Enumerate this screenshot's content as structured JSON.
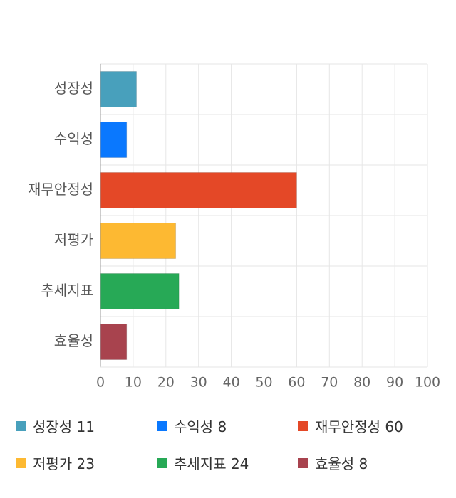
{
  "chart_data": {
    "type": "bar",
    "orientation": "horizontal",
    "categories": [
      "성장성",
      "수익성",
      "재무안정성",
      "저평가",
      "추세지표",
      "효율성"
    ],
    "values": [
      11,
      8,
      60,
      23,
      24,
      8
    ],
    "colors": [
      "#48a0bc",
      "#0a78fe",
      "#e44827",
      "#fdb932",
      "#27a956",
      "#a8434e"
    ],
    "xlim": [
      0,
      100
    ],
    "xticks": [
      "0",
      "10",
      "20",
      "30",
      "40",
      "50",
      "60",
      "70",
      "80",
      "90",
      "100"
    ],
    "grid": true,
    "legend_position": "bottom"
  },
  "legend": [
    {
      "label": "성장성 11"
    },
    {
      "label": "수익성 8"
    },
    {
      "label": "재무안정성 60"
    },
    {
      "label": "저평가 23"
    },
    {
      "label": "추세지표 24"
    },
    {
      "label": "효율성 8"
    }
  ]
}
